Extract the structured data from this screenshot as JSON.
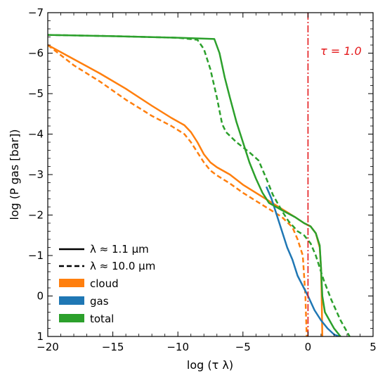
{
  "chart_data": {
    "type": "line",
    "xlabel": "log (τ λ)",
    "ylabel": "log (P gas [bar])",
    "xlim": [
      -20,
      5
    ],
    "ylim": [
      1,
      -7
    ],
    "xticks": [
      -20,
      -15,
      -10,
      -5,
      0,
      5
    ],
    "yticks": [
      -7,
      -6,
      -5,
      -4,
      -3,
      -2,
      -1,
      0,
      1
    ],
    "tick_direction": "in",
    "grid": false,
    "legend_position": "lower-left",
    "legend": {
      "lines": [
        {
          "label": "λ ≈ 1.1 μm",
          "style": "solid"
        },
        {
          "label": "λ ≈ 10.0 μm",
          "style": "dashed"
        }
      ],
      "patches": [
        {
          "label": "cloud",
          "color": "#ff7f0e"
        },
        {
          "label": "gas",
          "color": "#1f77b4"
        },
        {
          "label": "total",
          "color": "#2ca02c"
        }
      ]
    },
    "annotations": [
      {
        "text": "τ = 1.0",
        "x": 0,
        "y": -6.05,
        "color": "#e41a1c"
      }
    ],
    "vline": {
      "x": 0,
      "color": "#e41a1c",
      "style": "dashdot"
    },
    "series": [
      {
        "name": "cloud",
        "wavelength": "λ ≈ 1.1 μm",
        "style": "solid",
        "color": "#ff7f0e",
        "points": [
          [
            -20,
            -6.2
          ],
          [
            -18,
            -5.85
          ],
          [
            -16,
            -5.5
          ],
          [
            -14,
            -5.12
          ],
          [
            -12,
            -4.7
          ],
          [
            -10.5,
            -4.4
          ],
          [
            -9.5,
            -4.22
          ],
          [
            -9,
            -4.05
          ],
          [
            -8.5,
            -3.8
          ],
          [
            -8,
            -3.5
          ],
          [
            -7.5,
            -3.3
          ],
          [
            -7,
            -3.18
          ],
          [
            -6,
            -3.0
          ],
          [
            -5,
            -2.75
          ],
          [
            -4,
            -2.55
          ],
          [
            -3,
            -2.35
          ],
          [
            -2,
            -2.15
          ],
          [
            -1,
            -1.95
          ],
          [
            -0.3,
            -1.8
          ],
          [
            0.2,
            -1.72
          ],
          [
            0.6,
            -1.55
          ],
          [
            0.9,
            -1.2
          ],
          [
            1.0,
            -0.7
          ],
          [
            1.05,
            0
          ],
          [
            1.1,
            1.0
          ]
        ]
      },
      {
        "name": "cloud",
        "wavelength": "λ ≈ 10.0 μm",
        "style": "dashed",
        "color": "#ff7f0e",
        "points": [
          [
            -20,
            -6.2
          ],
          [
            -18,
            -5.7
          ],
          [
            -16,
            -5.3
          ],
          [
            -14,
            -4.85
          ],
          [
            -12,
            -4.45
          ],
          [
            -10.5,
            -4.2
          ],
          [
            -9.5,
            -4.0
          ],
          [
            -9,
            -3.8
          ],
          [
            -8.5,
            -3.55
          ],
          [
            -8,
            -3.3
          ],
          [
            -7.5,
            -3.1
          ],
          [
            -7,
            -2.98
          ],
          [
            -6,
            -2.78
          ],
          [
            -5,
            -2.55
          ],
          [
            -4,
            -2.35
          ],
          [
            -3,
            -2.15
          ],
          [
            -2,
            -1.95
          ],
          [
            -1.2,
            -1.7
          ],
          [
            -0.8,
            -1.4
          ],
          [
            -0.4,
            -1.0
          ],
          [
            -0.2,
            0
          ],
          [
            -0.1,
            1.0
          ]
        ]
      },
      {
        "name": "gas",
        "wavelength": "λ ≈ 1.1 μm",
        "style": "solid",
        "color": "#1f77b4",
        "points": [
          [
            -3.2,
            -2.7
          ],
          [
            -2.8,
            -2.4
          ],
          [
            -2.4,
            -2.0
          ],
          [
            -2,
            -1.6
          ],
          [
            -1.6,
            -1.2
          ],
          [
            -1.2,
            -0.9
          ],
          [
            -0.8,
            -0.5
          ],
          [
            -0.4,
            -0.25
          ],
          [
            0,
            0
          ],
          [
            0.5,
            0.35
          ],
          [
            1,
            0.6
          ],
          [
            1.5,
            0.8
          ],
          [
            2,
            0.95
          ],
          [
            2.4,
            1.0
          ]
        ]
      },
      {
        "name": "total",
        "wavelength": "λ ≈ 1.1 μm",
        "style": "solid",
        "color": "#2ca02c",
        "points": [
          [
            -20,
            -6.45
          ],
          [
            -15,
            -6.42
          ],
          [
            -10,
            -6.38
          ],
          [
            -7.2,
            -6.35
          ],
          [
            -6.8,
            -6.0
          ],
          [
            -6.4,
            -5.4
          ],
          [
            -6,
            -4.9
          ],
          [
            -5.5,
            -4.3
          ],
          [
            -5,
            -3.8
          ],
          [
            -4.5,
            -3.3
          ],
          [
            -4,
            -2.9
          ],
          [
            -3.5,
            -2.55
          ],
          [
            -3,
            -2.3
          ],
          [
            -2,
            -2.12
          ],
          [
            -1,
            -1.95
          ],
          [
            -0.3,
            -1.8
          ],
          [
            0.2,
            -1.72
          ],
          [
            0.6,
            -1.55
          ],
          [
            0.9,
            -1.25
          ],
          [
            1.0,
            -0.7
          ],
          [
            1.1,
            0
          ],
          [
            1.3,
            0.4
          ],
          [
            2,
            0.8
          ],
          [
            2.5,
            1.0
          ]
        ]
      },
      {
        "name": "total",
        "wavelength": "λ ≈ 10.0 μm",
        "style": "dashed",
        "color": "#2ca02c",
        "points": [
          [
            -20,
            -6.45
          ],
          [
            -15,
            -6.42
          ],
          [
            -10,
            -6.38
          ],
          [
            -8.5,
            -6.33
          ],
          [
            -8,
            -6.1
          ],
          [
            -7.5,
            -5.6
          ],
          [
            -7,
            -4.9
          ],
          [
            -6.6,
            -4.25
          ],
          [
            -6.3,
            -4.05
          ],
          [
            -5.5,
            -3.8
          ],
          [
            -4.5,
            -3.55
          ],
          [
            -3.8,
            -3.35
          ],
          [
            -3.2,
            -2.9
          ],
          [
            -2.7,
            -2.5
          ],
          [
            -2,
            -2.1
          ],
          [
            -1.5,
            -1.85
          ],
          [
            -0.8,
            -1.6
          ],
          [
            -0.3,
            -1.5
          ],
          [
            0.2,
            -1.3
          ],
          [
            0.6,
            -1.0
          ],
          [
            1.2,
            -0.4
          ],
          [
            1.8,
            0.1
          ],
          [
            2.5,
            0.6
          ],
          [
            3.2,
            1.0
          ]
        ]
      }
    ]
  }
}
